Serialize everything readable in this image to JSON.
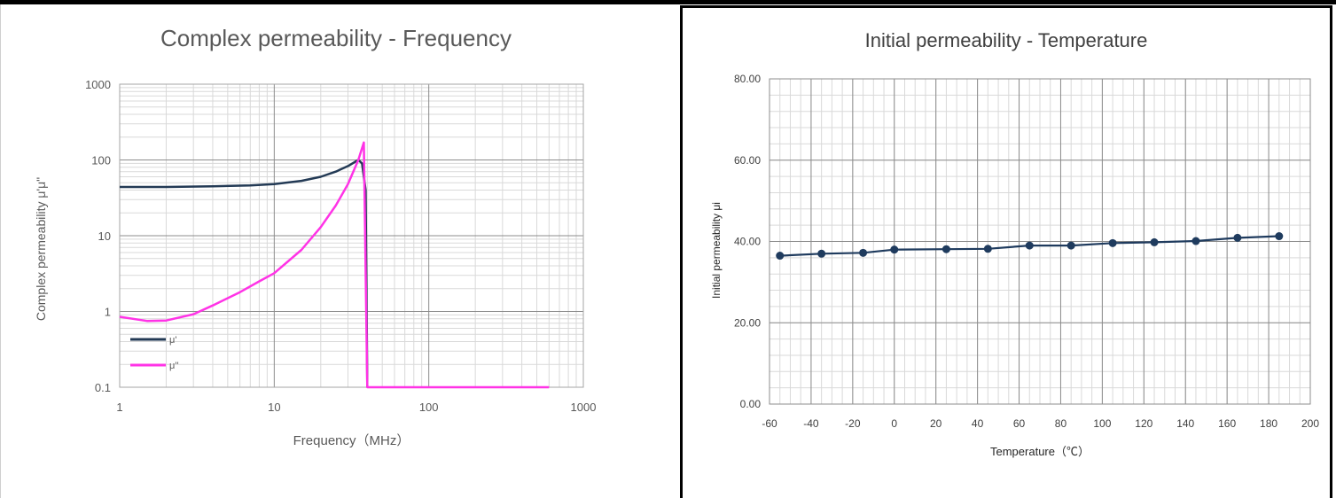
{
  "chart_data": [
    {
      "type": "line",
      "title": "Complex permeability - Frequency",
      "xlabel": "Frequency（MHz）",
      "ylabel": "Complex permeability μ'μ\"",
      "x_scale": "log",
      "y_scale": "log",
      "xlim": [
        1,
        1000
      ],
      "ylim": [
        0.1,
        1000
      ],
      "x_ticks": [
        "1",
        "10",
        "100",
        "1000"
      ],
      "y_ticks": [
        "0.1",
        "1",
        "10",
        "100",
        "1000"
      ],
      "grid": true,
      "legend_position": "bottom-left",
      "series": [
        {
          "name": "μ'",
          "color": "#233a55",
          "x": [
            1,
            2,
            4,
            7,
            10,
            15,
            20,
            25,
            30,
            35,
            37,
            39,
            40
          ],
          "values": [
            44,
            44,
            45,
            46,
            48,
            53,
            60,
            70,
            83,
            100,
            90,
            40,
            0.1
          ]
        },
        {
          "name": "μ''",
          "color": "#ff33e6",
          "x": [
            1,
            1.5,
            2,
            3,
            4,
            6,
            8,
            10,
            15,
            20,
            25,
            30,
            35,
            38,
            40,
            41,
            50,
            100,
            300,
            600
          ],
          "values": [
            0.85,
            0.75,
            0.76,
            0.92,
            1.2,
            1.8,
            2.5,
            3.2,
            6.5,
            13,
            25,
            48,
            100,
            170,
            0.1,
            0.1,
            0.1,
            0.1,
            0.1,
            0.1
          ]
        }
      ]
    },
    {
      "type": "line",
      "title": "Initial permeability - Temperature",
      "xlabel": "Temperature（℃）",
      "ylabel": "Initial permeability μi",
      "xlim": [
        -60,
        200
      ],
      "ylim": [
        0,
        80
      ],
      "x_ticks": [
        "-60",
        "-40",
        "-20",
        "0",
        "20",
        "40",
        "60",
        "80",
        "100",
        "120",
        "140",
        "160",
        "180",
        "200"
      ],
      "y_ticks": [
        "0.00",
        "20.00",
        "40.00",
        "60.00",
        "80.00"
      ],
      "grid": true,
      "series": [
        {
          "color": "#1f3b5e",
          "x": [
            -55,
            -35,
            -15,
            0,
            25,
            45,
            65,
            85,
            105,
            125,
            145,
            165,
            185
          ],
          "values": [
            36.5,
            37.0,
            37.2,
            38.0,
            38.1,
            38.2,
            39.0,
            39.0,
            39.6,
            39.8,
            40.1,
            40.9,
            41.3
          ]
        }
      ]
    }
  ]
}
